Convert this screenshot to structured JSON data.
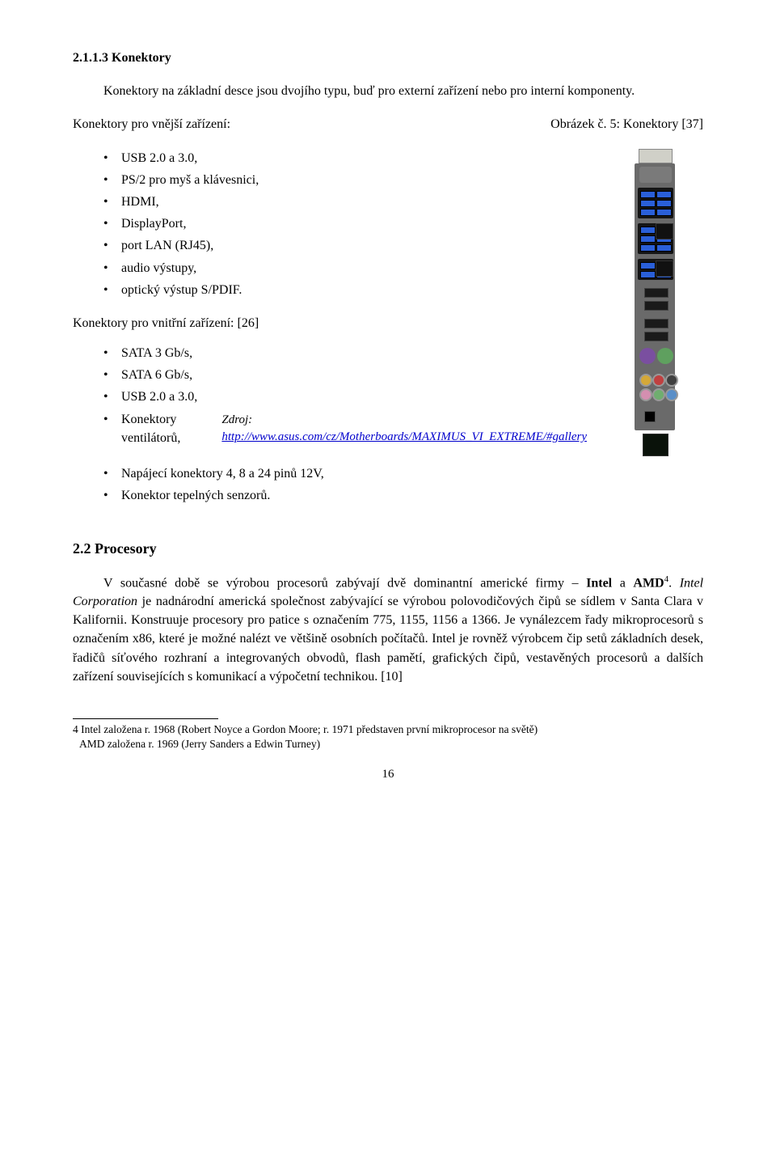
{
  "heading1": "2.1.1.3   Konektory",
  "intro": "Konektory na základní desce jsou dvojího typu, buď pro externí zařízení nebo pro interní komponenty.",
  "caption_left": "Konektory pro vnější zařízení:",
  "caption_right": "Obrázek č. 5:  Konektory [37]",
  "list1": [
    "USB 2.0 a 3.0,",
    "PS/2 pro myš a klávesnici,",
    "HDMI,",
    "DisplayPort,",
    "port LAN (RJ45),",
    "audio výstupy,",
    "optický výstup S/PDIF."
  ],
  "subhead2": "Konektory pro vnitřní zařízení: [26]",
  "list2a": [
    "SATA 3 Gb/s,",
    "SATA 6 Gb/s,",
    "USB 2.0 a 3.0,",
    "Konektory ventilátorů,"
  ],
  "source_label": "Zdroj",
  "source_url_text": "http://www.asus.com/cz/Motherboards/MAXIMUS_VI_EXTREME/#gallery",
  "list2b": [
    "Napájecí konektory 4, 8 a 24 pinů 12V,",
    "Konektor tepelných senzorů."
  ],
  "heading2": "2.2  Procesory",
  "para2_part1": "V současné době se výrobou procesorů zabývají dvě dominantní americké firmy – ",
  "para2_bold1": "Intel",
  "para2_mid": " a ",
  "para2_bold2": "AMD",
  "para2_sup": "4",
  "para2_part2": ". Intel Corporation je nadnárodní americká společnost zabývající se výrobou polovodičových čipů se sídlem v Santa Clara v Kalifornii. Konstruuje procesory pro patice s označením 775, 1155, 1156 a 1366. Je vynálezcem řady mikroprocesorů s označením x86, které je možné nalézt ve většině osobních počítačů. Intel je rovněž výrobcem čip setů základních desek, řadičů síťového rozhraní a integrovaných obvodů, flash pamětí, grafických čipů, vestavěných procesorů a dalších zařízení souvisejících s komunikací a výpočetní technikou. [10]",
  "footnote_line1": "4 Intel založena r. 1968 (Robert Noyce a Gordon Moore; r. 1971 představen první mikroprocesor na světě)",
  "footnote_line2": "  AMD založena r. 1969 (Jerry Sanders a Edwin Turney)",
  "page_number": "16",
  "figure": {
    "usb_color": "#2a5fd8",
    "ps2_purple": "#7a4fa0",
    "ps2_green": "#5fa05f",
    "audio_colors": [
      "#d4a838",
      "#c04040",
      "#404040",
      "#d48fb0",
      "#6fae6f",
      "#5a8fc8"
    ]
  }
}
